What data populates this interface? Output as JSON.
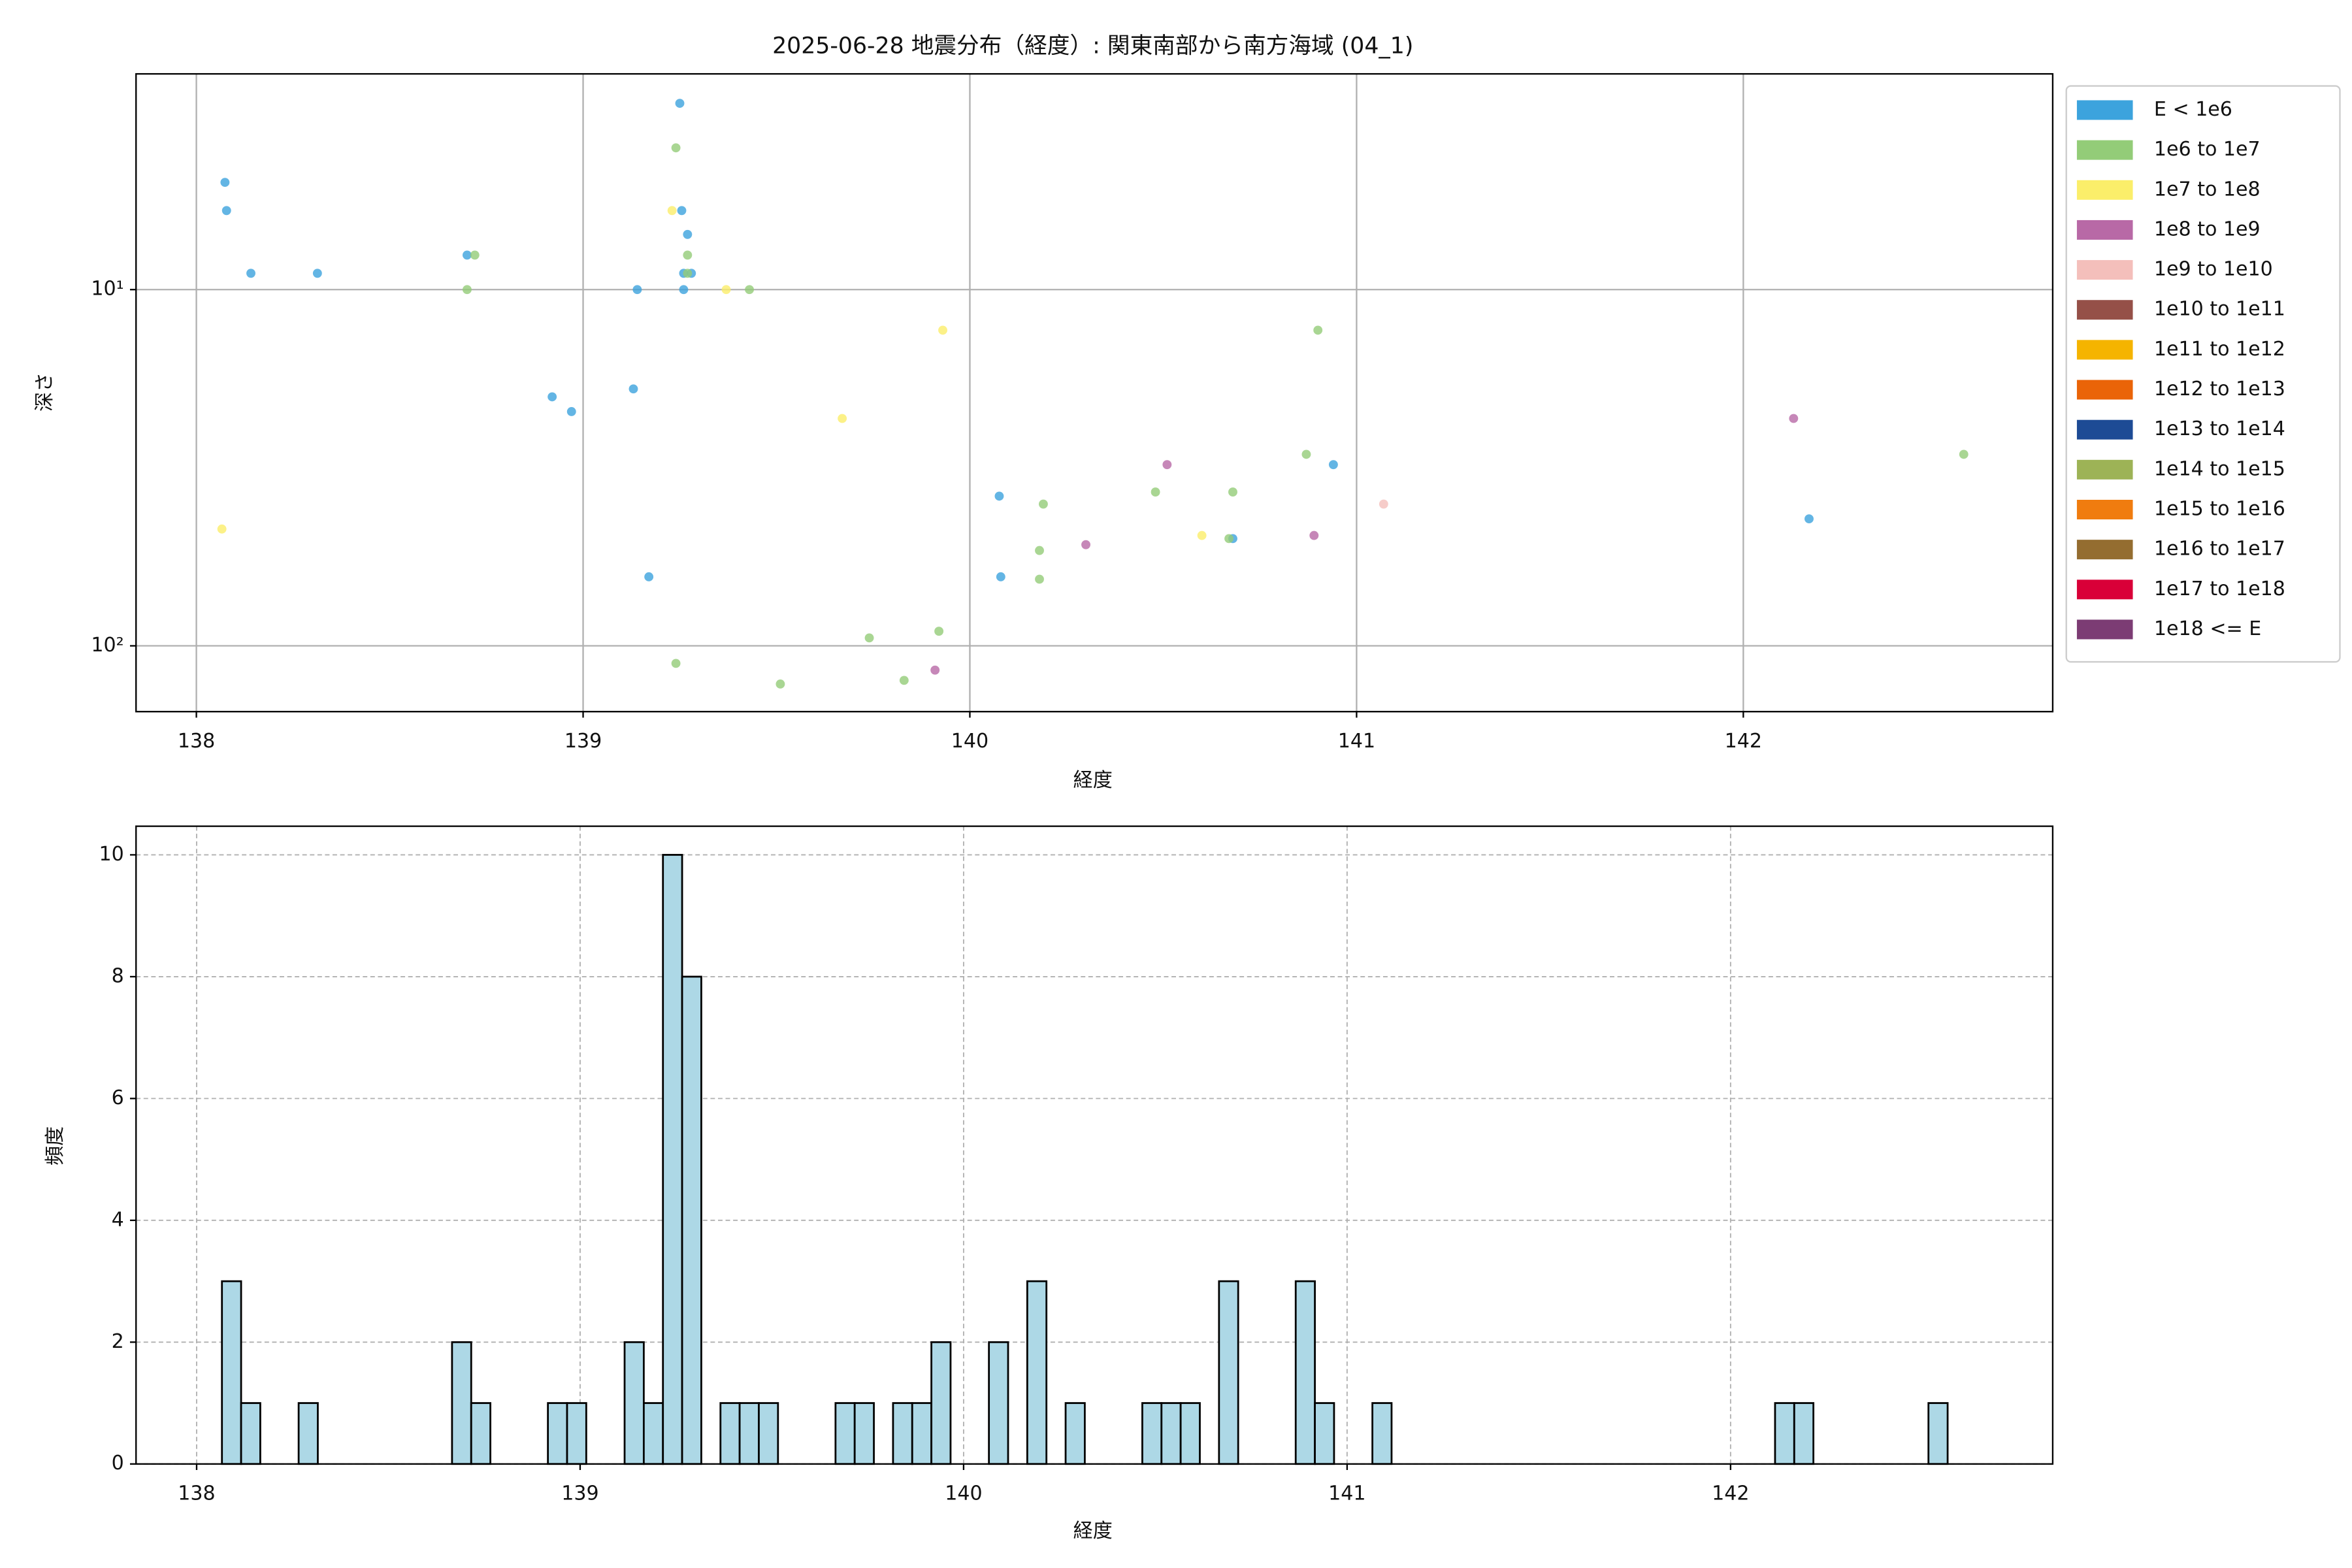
{
  "chart_data": [
    {
      "type": "scatter",
      "title": "2025-06-28 地震分布（経度）: 関東南部から南方海域 (04_1)",
      "xlabel": "経度",
      "ylabel": "深さ",
      "xlim": [
        137.844,
        142.8
      ],
      "ylim": [
        2.48,
        153
      ],
      "xticks": [
        138,
        139,
        140,
        141,
        142
      ],
      "yticks": [
        {
          "value": 10,
          "label": "10¹"
        },
        {
          "value": 100,
          "label": "10²"
        }
      ],
      "yscale": "log",
      "invert_y": true,
      "grid": true,
      "legend": "outside upper right",
      "series": [
        {
          "name": "E < 1e6",
          "color": "#3ca3dd",
          "x": [
            138.074,
            138.078,
            138.141,
            138.313,
            138.7,
            138.92,
            138.97,
            139.13,
            139.17,
            139.14,
            139.25,
            139.255,
            139.27,
            139.26,
            139.28,
            139.26,
            140.076,
            140.08,
            140.68,
            140.94,
            142.17
          ],
          "values": [
            5,
            6,
            9,
            9,
            8,
            20,
            22,
            19,
            64,
            10,
            3,
            6,
            7,
            9,
            9,
            10,
            38,
            64,
            50,
            31,
            44
          ]
        },
        {
          "name": "1e6 to 1e7",
          "color": "#93cc78",
          "x": [
            138.72,
            138.7,
            139.24,
            139.27,
            139.27,
            139.43,
            139.24,
            139.51,
            139.74,
            139.83,
            139.92,
            140.18,
            140.18,
            140.19,
            140.48,
            140.68,
            140.67,
            140.87,
            140.9,
            142.57
          ],
          "values": [
            8,
            10,
            4,
            8,
            9,
            10,
            112,
            128,
            95,
            125,
            91,
            54,
            65,
            40,
            37,
            37,
            50,
            29,
            13,
            29
          ]
        },
        {
          "name": "1e7 to 1e8",
          "color": "#fbee6a",
          "x": [
            138.066,
            139.23,
            139.37,
            139.93,
            139.67,
            140.6
          ],
          "values": [
            47,
            6,
            10,
            13,
            23,
            49
          ]
        },
        {
          "name": "1e8 to 1e9",
          "color": "#b869a6",
          "x": [
            139.91,
            140.3,
            140.51,
            140.89,
            142.13
          ],
          "values": [
            117,
            52,
            31,
            49,
            23
          ]
        },
        {
          "name": "1e9 to 1e10",
          "color": "#f4bfbb",
          "x": [
            141.07
          ],
          "values": [
            40
          ]
        },
        {
          "name": "1e10 to 1e11",
          "color": "#955048",
          "x": [],
          "values": []
        },
        {
          "name": "1e11 to 1e12",
          "color": "#f5b400",
          "x": [],
          "values": []
        },
        {
          "name": "1e12 to 1e13",
          "color": "#ea6408",
          "x": [],
          "values": []
        },
        {
          "name": "1e13 to 1e14",
          "color": "#1d4b95",
          "x": [],
          "values": []
        },
        {
          "name": "1e14 to 1e15",
          "color": "#9db356",
          "x": [],
          "values": []
        },
        {
          "name": "1e15 to 1e16",
          "color": "#f07c0f",
          "x": [],
          "values": []
        },
        {
          "name": "1e16 to 1e17",
          "color": "#946d30",
          "x": [],
          "values": []
        },
        {
          "name": "1e17 to 1e18",
          "color": "#d90038",
          "x": [],
          "values": []
        },
        {
          "name": "1e18 <= E",
          "color": "#7c3c74",
          "x": [],
          "values": []
        }
      ]
    },
    {
      "type": "histogram",
      "xlabel": "経度",
      "ylabel": "頻度",
      "xlim": [
        137.842,
        142.84
      ],
      "ylim": [
        0,
        10.47
      ],
      "xticks": [
        138,
        139,
        140,
        141,
        142
      ],
      "yticks": [
        0,
        2,
        4,
        6,
        8,
        10
      ],
      "grid": "dashed",
      "color": "#add8e6",
      "edgecolor": "#000000",
      "bins": [
        138.066,
        138.116,
        138.166,
        138.216,
        138.266,
        138.316,
        138.366,
        138.416,
        138.466,
        138.516,
        138.566,
        138.616,
        138.666,
        138.716,
        138.766,
        138.816,
        138.866,
        138.916,
        138.966,
        139.016,
        139.066,
        139.116,
        139.166,
        139.216,
        139.266,
        139.316,
        139.366,
        139.416,
        139.466,
        139.516,
        139.566,
        139.616,
        139.666,
        139.716,
        139.766,
        139.816,
        139.866,
        139.916,
        139.966,
        140.016,
        140.066,
        140.116,
        140.166,
        140.216,
        140.266,
        140.316,
        140.366,
        140.416,
        140.466,
        140.516,
        140.566,
        140.616,
        140.666,
        140.716,
        140.766,
        140.816,
        140.866,
        140.916,
        140.966,
        141.016,
        141.066,
        141.116,
        141.166,
        141.216,
        141.266,
        141.316,
        141.366,
        141.416,
        141.466,
        141.516,
        141.566,
        141.616,
        141.666,
        141.716,
        141.766,
        141.816,
        141.866,
        141.916,
        141.966,
        142.016,
        142.066,
        142.116,
        142.166,
        142.216,
        142.266,
        142.316,
        142.366,
        142.416,
        142.466,
        142.516,
        142.566
      ],
      "values": [
        3,
        1,
        0,
        0,
        1,
        0,
        0,
        0,
        0,
        0,
        0,
        0,
        2,
        1,
        0,
        0,
        0,
        1,
        1,
        0,
        0,
        2,
        1,
        10,
        8,
        0,
        1,
        1,
        1,
        0,
        0,
        0,
        1,
        1,
        0,
        1,
        1,
        2,
        0,
        0,
        2,
        0,
        3,
        0,
        1,
        0,
        0,
        0,
        1,
        1,
        1,
        0,
        3,
        0,
        0,
        0,
        3,
        1,
        0,
        0,
        1,
        0,
        0,
        0,
        0,
        0,
        0,
        0,
        0,
        0,
        0,
        0,
        0,
        0,
        0,
        0,
        0,
        0,
        0,
        0,
        0,
        1,
        1,
        0,
        0,
        0,
        0,
        0,
        0,
        1
      ]
    }
  ]
}
